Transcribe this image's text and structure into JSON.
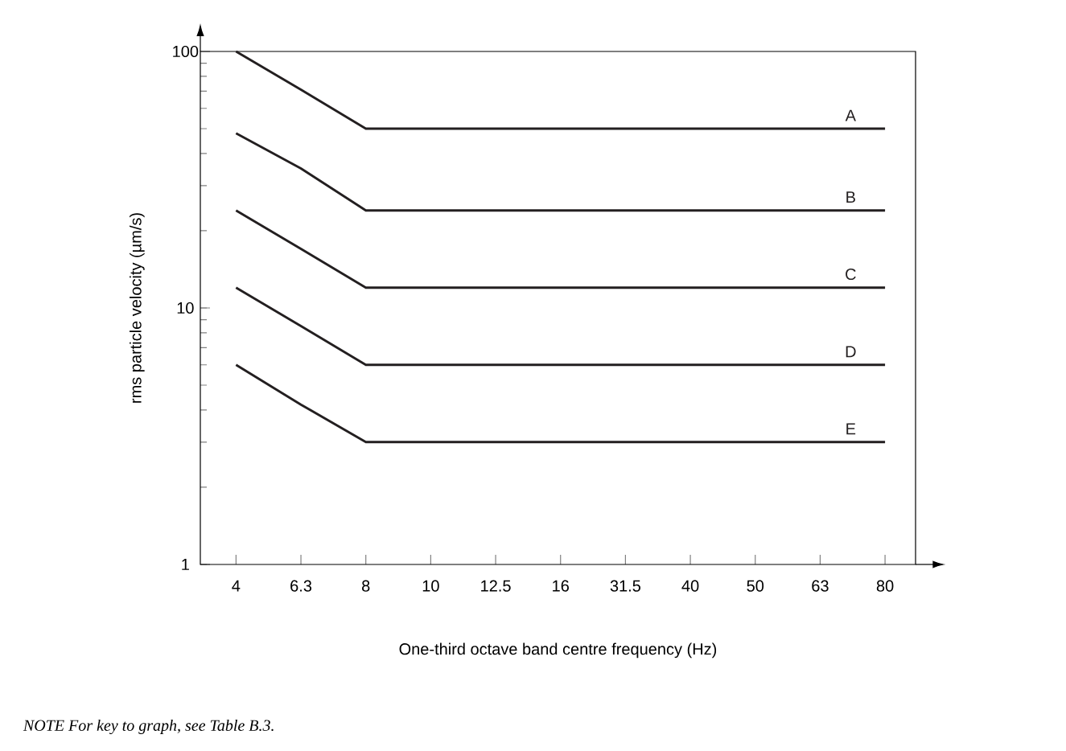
{
  "chart_data": {
    "type": "line",
    "xlabel": "One-third octave band centre frequency (Hz)",
    "ylabel": "rms particle velocity (µm/s)",
    "categories": [
      "4",
      "6.3",
      "8",
      "10",
      "12.5",
      "16",
      "31.5",
      "40",
      "50",
      "63",
      "80"
    ],
    "series": [
      {
        "name": "A",
        "color": "#231f20",
        "values": [
          100,
          71,
          50,
          50,
          50,
          50,
          50,
          50,
          50,
          50,
          50
        ]
      },
      {
        "name": "B",
        "color": "#231f20",
        "values": [
          48,
          35,
          24,
          24,
          24,
          24,
          24,
          24,
          24,
          24,
          24
        ]
      },
      {
        "name": "C",
        "color": "#231f20",
        "values": [
          24,
          17,
          12,
          12,
          12,
          12,
          12,
          12,
          12,
          12,
          12
        ]
      },
      {
        "name": "D",
        "color": "#231f20",
        "values": [
          12,
          8.5,
          6,
          6,
          6,
          6,
          6,
          6,
          6,
          6,
          6
        ]
      },
      {
        "name": "E",
        "color": "#231f20",
        "values": [
          6,
          4.2,
          3,
          3,
          3,
          3,
          3,
          3,
          3,
          3,
          3
        ]
      }
    ],
    "log": "y",
    "ylim": [
      1,
      100
    ],
    "yticks": [
      1,
      10,
      100
    ],
    "annotations": [
      "NOTE    For key to graph, see Table B.3."
    ]
  }
}
